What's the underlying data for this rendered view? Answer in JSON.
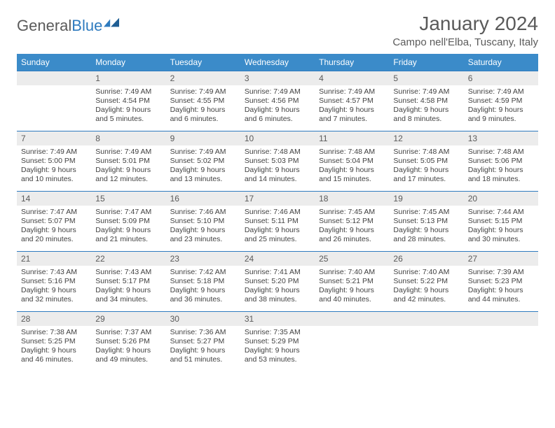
{
  "logo": {
    "general": "General",
    "blue": "Blue"
  },
  "title": "January 2024",
  "location": "Campo nell'Elba, Tuscany, Italy",
  "colors": {
    "header_bg": "#3b8bc9",
    "daynum_bg": "#ececec",
    "border": "#2f7bbf"
  },
  "weekdays": [
    "Sunday",
    "Monday",
    "Tuesday",
    "Wednesday",
    "Thursday",
    "Friday",
    "Saturday"
  ],
  "start_weekday": 1,
  "days": [
    {
      "n": 1,
      "sr": "7:49 AM",
      "ss": "4:54 PM",
      "dl": "9 hours and 5 minutes."
    },
    {
      "n": 2,
      "sr": "7:49 AM",
      "ss": "4:55 PM",
      "dl": "9 hours and 6 minutes."
    },
    {
      "n": 3,
      "sr": "7:49 AM",
      "ss": "4:56 PM",
      "dl": "9 hours and 6 minutes."
    },
    {
      "n": 4,
      "sr": "7:49 AM",
      "ss": "4:57 PM",
      "dl": "9 hours and 7 minutes."
    },
    {
      "n": 5,
      "sr": "7:49 AM",
      "ss": "4:58 PM",
      "dl": "9 hours and 8 minutes."
    },
    {
      "n": 6,
      "sr": "7:49 AM",
      "ss": "4:59 PM",
      "dl": "9 hours and 9 minutes."
    },
    {
      "n": 7,
      "sr": "7:49 AM",
      "ss": "5:00 PM",
      "dl": "9 hours and 10 minutes."
    },
    {
      "n": 8,
      "sr": "7:49 AM",
      "ss": "5:01 PM",
      "dl": "9 hours and 12 minutes."
    },
    {
      "n": 9,
      "sr": "7:49 AM",
      "ss": "5:02 PM",
      "dl": "9 hours and 13 minutes."
    },
    {
      "n": 10,
      "sr": "7:48 AM",
      "ss": "5:03 PM",
      "dl": "9 hours and 14 minutes."
    },
    {
      "n": 11,
      "sr": "7:48 AM",
      "ss": "5:04 PM",
      "dl": "9 hours and 15 minutes."
    },
    {
      "n": 12,
      "sr": "7:48 AM",
      "ss": "5:05 PM",
      "dl": "9 hours and 17 minutes."
    },
    {
      "n": 13,
      "sr": "7:48 AM",
      "ss": "5:06 PM",
      "dl": "9 hours and 18 minutes."
    },
    {
      "n": 14,
      "sr": "7:47 AM",
      "ss": "5:07 PM",
      "dl": "9 hours and 20 minutes."
    },
    {
      "n": 15,
      "sr": "7:47 AM",
      "ss": "5:09 PM",
      "dl": "9 hours and 21 minutes."
    },
    {
      "n": 16,
      "sr": "7:46 AM",
      "ss": "5:10 PM",
      "dl": "9 hours and 23 minutes."
    },
    {
      "n": 17,
      "sr": "7:46 AM",
      "ss": "5:11 PM",
      "dl": "9 hours and 25 minutes."
    },
    {
      "n": 18,
      "sr": "7:45 AM",
      "ss": "5:12 PM",
      "dl": "9 hours and 26 minutes."
    },
    {
      "n": 19,
      "sr": "7:45 AM",
      "ss": "5:13 PM",
      "dl": "9 hours and 28 minutes."
    },
    {
      "n": 20,
      "sr": "7:44 AM",
      "ss": "5:15 PM",
      "dl": "9 hours and 30 minutes."
    },
    {
      "n": 21,
      "sr": "7:43 AM",
      "ss": "5:16 PM",
      "dl": "9 hours and 32 minutes."
    },
    {
      "n": 22,
      "sr": "7:43 AM",
      "ss": "5:17 PM",
      "dl": "9 hours and 34 minutes."
    },
    {
      "n": 23,
      "sr": "7:42 AM",
      "ss": "5:18 PM",
      "dl": "9 hours and 36 minutes."
    },
    {
      "n": 24,
      "sr": "7:41 AM",
      "ss": "5:20 PM",
      "dl": "9 hours and 38 minutes."
    },
    {
      "n": 25,
      "sr": "7:40 AM",
      "ss": "5:21 PM",
      "dl": "9 hours and 40 minutes."
    },
    {
      "n": 26,
      "sr": "7:40 AM",
      "ss": "5:22 PM",
      "dl": "9 hours and 42 minutes."
    },
    {
      "n": 27,
      "sr": "7:39 AM",
      "ss": "5:23 PM",
      "dl": "9 hours and 44 minutes."
    },
    {
      "n": 28,
      "sr": "7:38 AM",
      "ss": "5:25 PM",
      "dl": "9 hours and 46 minutes."
    },
    {
      "n": 29,
      "sr": "7:37 AM",
      "ss": "5:26 PM",
      "dl": "9 hours and 49 minutes."
    },
    {
      "n": 30,
      "sr": "7:36 AM",
      "ss": "5:27 PM",
      "dl": "9 hours and 51 minutes."
    },
    {
      "n": 31,
      "sr": "7:35 AM",
      "ss": "5:29 PM",
      "dl": "9 hours and 53 minutes."
    }
  ],
  "labels": {
    "sunrise": "Sunrise:",
    "sunset": "Sunset:",
    "daylight": "Daylight:"
  }
}
